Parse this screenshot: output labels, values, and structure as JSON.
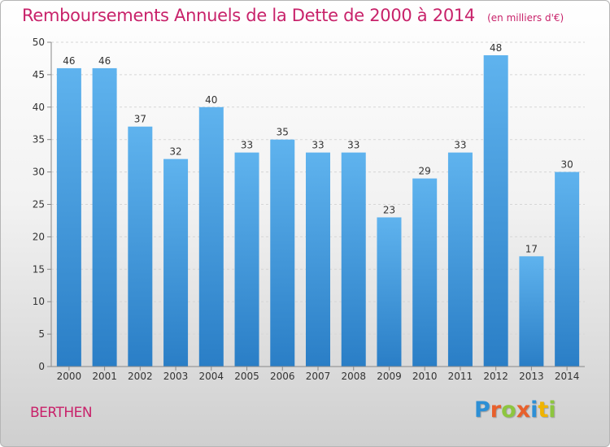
{
  "chart_data": {
    "type": "bar",
    "title": "Remboursements Annuels de la Dette de 2000 à 2014",
    "subtitle": "(en milliers d'€)",
    "categories": [
      "2000",
      "2001",
      "2002",
      "2003",
      "2004",
      "2005",
      "2006",
      "2007",
      "2008",
      "2009",
      "2010",
      "2011",
      "2012",
      "2013",
      "2014"
    ],
    "values": [
      46,
      46,
      37,
      32,
      40,
      33,
      35,
      33,
      33,
      23,
      29,
      33,
      48,
      17,
      30
    ],
    "ylim": [
      0,
      50
    ],
    "yticks": [
      0,
      5,
      10,
      15,
      20,
      25,
      30,
      35,
      40,
      45,
      50
    ],
    "xlabel": "",
    "ylabel": "",
    "grid": true,
    "bar_color": "#4a9ee0"
  },
  "footer": {
    "commune": "BERTHEN",
    "logo_letters": [
      {
        "ch": "P",
        "color": "#2d8fd5"
      },
      {
        "ch": "r",
        "color": "#e8602c"
      },
      {
        "ch": "o",
        "color": "#8dc63f"
      },
      {
        "ch": "x",
        "color": "#e8602c"
      },
      {
        "ch": "i",
        "color": "#2d8fd5"
      },
      {
        "ch": "t",
        "color": "#f0b400"
      },
      {
        "ch": "i",
        "color": "#8dc63f"
      }
    ]
  },
  "colors": {
    "title": "#c8226a",
    "commune": "#c8226a"
  }
}
